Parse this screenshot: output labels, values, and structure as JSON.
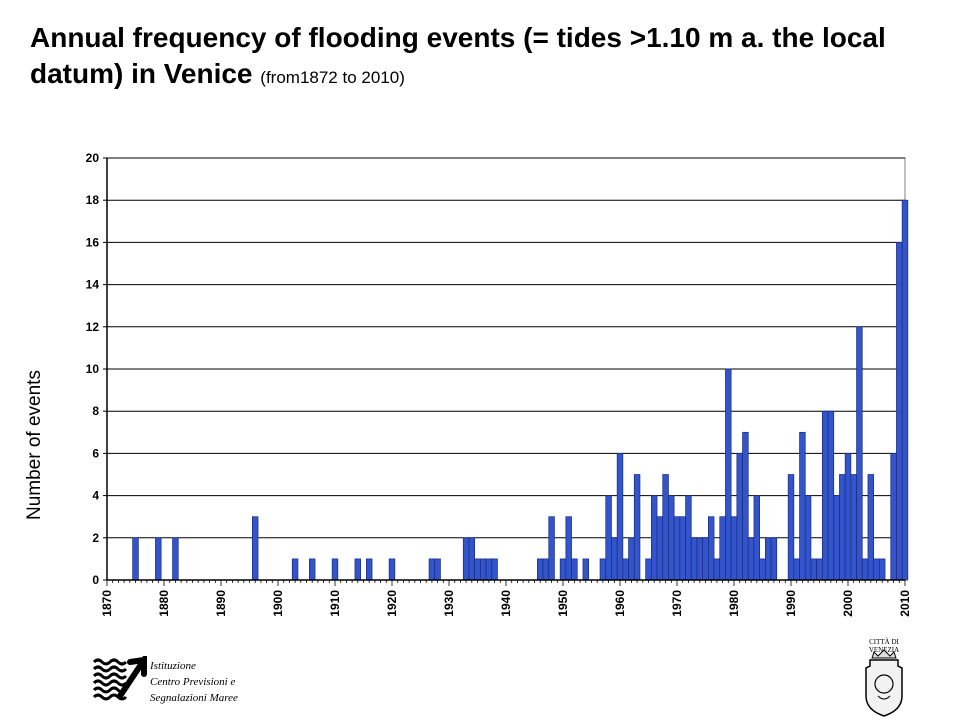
{
  "title": "Annual frequency of flooding events (= tides >1.10 m a. the local datum) in Venice",
  "subtitle": "(from1872 to 2010)",
  "chart_data": {
    "type": "bar",
    "ylabel": "Number of events",
    "xlabel": "",
    "xlim": [
      1870,
      2010
    ],
    "ylim": [
      0,
      20
    ],
    "yticks": [
      0,
      2,
      4,
      6,
      8,
      10,
      12,
      14,
      16,
      18,
      20
    ],
    "xticks": [
      1870,
      1880,
      1890,
      1900,
      1910,
      1920,
      1930,
      1940,
      1950,
      1960,
      1970,
      1980,
      1990,
      2000,
      2010
    ],
    "grid": "horizontal",
    "bar_color": "#3355cc",
    "x": [
      1875,
      1879,
      1882,
      1896,
      1903,
      1906,
      1910,
      1914,
      1916,
      1920,
      1927,
      1928,
      1933,
      1934,
      1935,
      1936,
      1937,
      1938,
      1946,
      1947,
      1948,
      1950,
      1951,
      1952,
      1954,
      1957,
      1958,
      1959,
      1960,
      1961,
      1962,
      1963,
      1965,
      1966,
      1967,
      1968,
      1969,
      1970,
      1971,
      1972,
      1973,
      1974,
      1975,
      1976,
      1977,
      1978,
      1979,
      1980,
      1981,
      1982,
      1983,
      1984,
      1985,
      1986,
      1987,
      1990,
      1991,
      1992,
      1993,
      1994,
      1995,
      1996,
      1997,
      1998,
      1999,
      2000,
      2001,
      2002,
      2003,
      2004,
      2005,
      2006,
      2008,
      2009,
      2010
    ],
    "values": [
      2,
      2,
      2,
      3,
      1,
      1,
      1,
      1,
      1,
      1,
      1,
      1,
      2,
      2,
      1,
      1,
      1,
      1,
      1,
      1,
      3,
      1,
      3,
      1,
      1,
      1,
      4,
      2,
      6,
      1,
      2,
      5,
      1,
      4,
      3,
      5,
      4,
      3,
      3,
      4,
      2,
      2,
      2,
      3,
      1,
      3,
      10,
      3,
      6,
      7,
      2,
      4,
      1,
      2,
      2,
      5,
      1,
      7,
      4,
      1,
      1,
      8,
      8,
      4,
      5,
      6,
      5,
      12,
      1,
      5,
      1,
      1,
      6,
      16,
      18
    ]
  },
  "logo_left": {
    "lines": [
      "Istituzione",
      "Centro Previsioni e",
      "Segnalazioni Maree"
    ]
  },
  "logo_right": {
    "lines": [
      "CITTÀ DI",
      "VENEZIA"
    ]
  },
  "colors": {
    "bar": "#3355cc",
    "bar_stroke": "#1a2a80",
    "axis": "#000000",
    "plot_border": "#808080"
  }
}
